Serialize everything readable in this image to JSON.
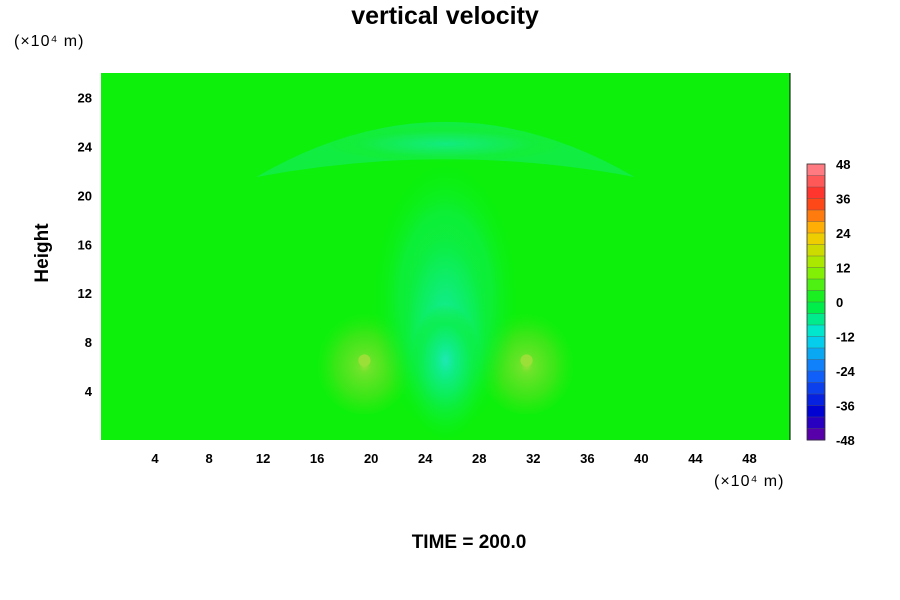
{
  "chart_data": {
    "type": "heatmap",
    "title": "vertical velocity",
    "ylabel": "Height",
    "x_unit": "(×10⁴ m)",
    "y_unit": "(×10⁴ m)",
    "footer": "TIME = 200.0",
    "xlim": [
      0,
      51
    ],
    "ylim": [
      0,
      30
    ],
    "x_ticks": [
      4,
      8,
      12,
      16,
      20,
      24,
      28,
      32,
      36,
      40,
      44,
      48
    ],
    "y_ticks": [
      4,
      8,
      12,
      16,
      20,
      24,
      28
    ],
    "colorbar": {
      "min": -48,
      "max": 48,
      "step": 4,
      "tick_labels": [
        48,
        36,
        24,
        12,
        0,
        -12,
        -24,
        -36,
        -48
      ]
    },
    "background_value": 0,
    "features": [
      {
        "kind": "updraft-lobe",
        "center_x": 19.5,
        "center_y": 6.5,
        "value": 4
      },
      {
        "kind": "updraft-lobe",
        "center_x": 31.5,
        "center_y": 6.5,
        "value": 4
      },
      {
        "kind": "downdraft-core",
        "center_x": 25.5,
        "center_y": 6.5,
        "value": -12
      },
      {
        "kind": "upper-downdraft-arc",
        "center_x": 25.5,
        "center_y": 24.2,
        "value": -6
      }
    ]
  }
}
